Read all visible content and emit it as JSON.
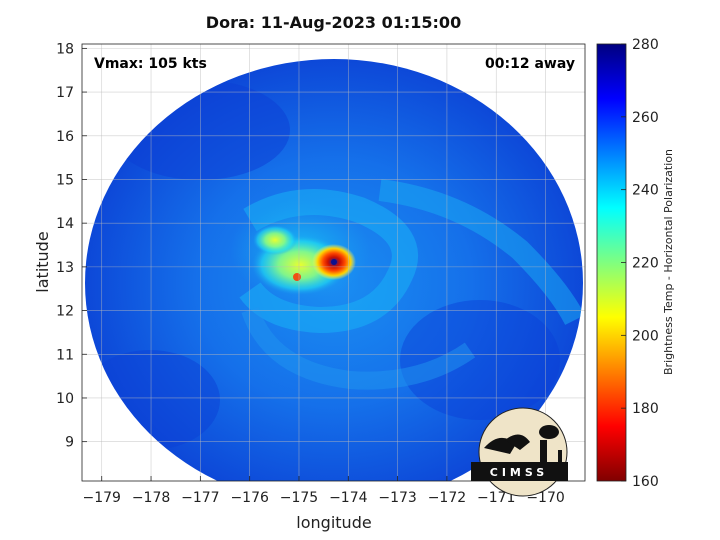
{
  "chart_data": {
    "type": "heatmap",
    "title": "Dora: 11-Aug-2023 01:15:00",
    "annotations": {
      "vmax": "Vmax: 105 kts",
      "away": "00:12 away"
    },
    "xlabel": "longitude",
    "ylabel": "latitude",
    "xlim": [
      -179.4,
      -169.2
    ],
    "ylim": [
      8.1,
      18.1
    ],
    "x_ticks": [
      -179,
      -178,
      -177,
      -176,
      -175,
      -174,
      -173,
      -172,
      -171,
      -170
    ],
    "y_ticks": [
      9,
      10,
      11,
      12,
      13,
      14,
      15,
      16,
      17,
      18
    ],
    "grid": true,
    "colorbar": {
      "label": "Brightness Temp - Horizontal Polarization",
      "min": 160,
      "max": 280,
      "ticks": [
        160,
        180,
        200,
        220,
        240,
        260,
        280
      ],
      "colormap": "jet"
    },
    "storm_center": {
      "lon": -174.0,
      "lat": 13.05
    },
    "logo_text": "CIMSS"
  }
}
